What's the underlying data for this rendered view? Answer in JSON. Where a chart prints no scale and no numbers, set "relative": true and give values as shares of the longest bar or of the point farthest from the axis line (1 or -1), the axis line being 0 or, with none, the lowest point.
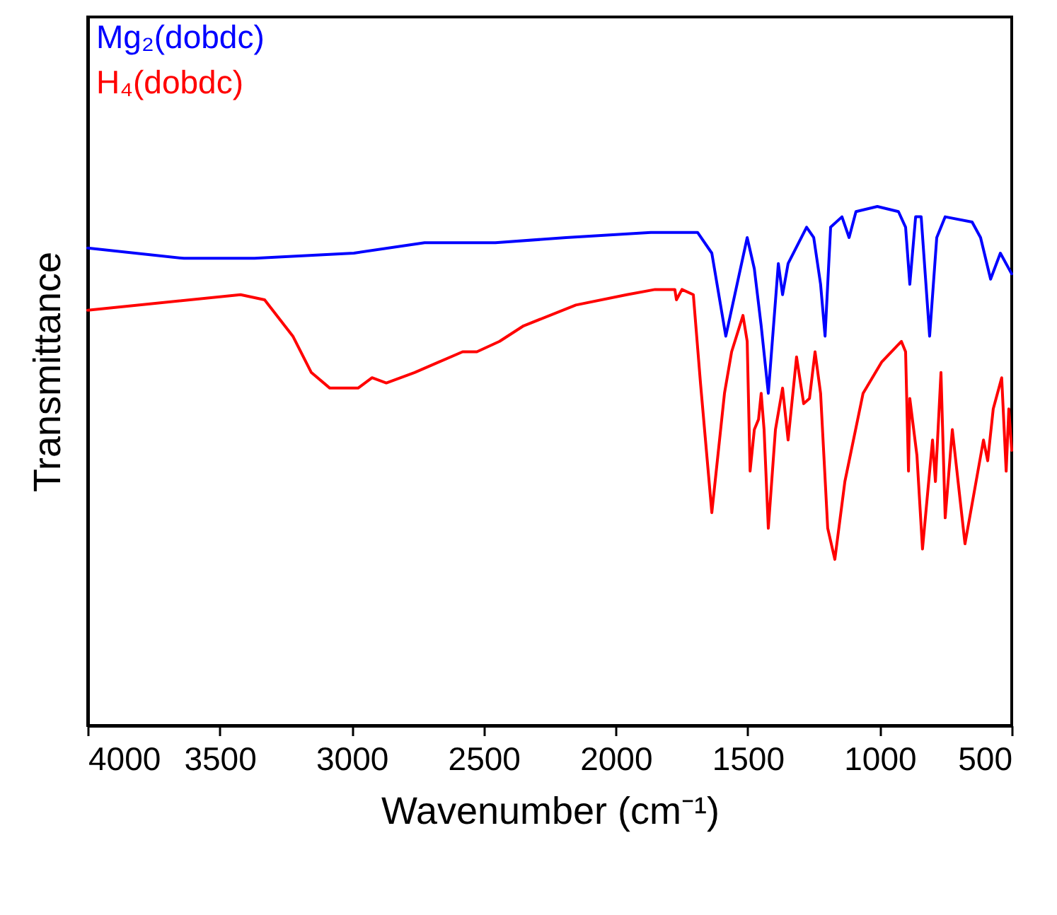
{
  "chart_data": {
    "type": "line",
    "relative": true,
    "xlabel": "Wavenumber (cm⁻¹)",
    "ylabel": "Transmittance",
    "xlim": [
      4000,
      500
    ],
    "xticks": [
      4000,
      3500,
      3000,
      2500,
      2000,
      1500,
      1000,
      500
    ],
    "legend": "top left",
    "grid": false,
    "marker": "none",
    "line_style": "solid",
    "series": [
      {
        "name": "Mg₂(dobdc)",
        "color": "#0000ff",
        "x": [
          4000,
          3636,
          3368,
          2992,
          2724,
          2456,
          2188,
          1867,
          1690,
          1636,
          1583,
          1502,
          1475,
          1449,
          1422,
          1384,
          1368,
          1347,
          1277,
          1250,
          1224,
          1207,
          1186,
          1143,
          1116,
          1090,
          1009,
          929,
          902,
          886,
          864,
          843,
          811,
          784,
          752,
          650,
          618,
          580,
          543,
          500
        ],
        "values": [
          0.92,
          0.9,
          0.9,
          0.91,
          0.93,
          0.93,
          0.94,
          0.95,
          0.95,
          0.91,
          0.75,
          0.94,
          0.88,
          0.77,
          0.64,
          0.89,
          0.83,
          0.89,
          0.96,
          0.94,
          0.85,
          0.75,
          0.96,
          0.98,
          0.94,
          0.99,
          1.0,
          0.99,
          0.96,
          0.85,
          0.98,
          0.98,
          0.75,
          0.94,
          0.98,
          0.97,
          0.94,
          0.86,
          0.91,
          0.87
        ]
      },
      {
        "name": "H₄(dobdc)",
        "color": "#ff0000",
        "x": [
          4000,
          3421,
          3330,
          3223,
          3153,
          3083,
          2976,
          2923,
          2869,
          2762,
          2671,
          2580,
          2526,
          2440,
          2349,
          2151,
          1958,
          1851,
          1776,
          1770,
          1749,
          1706,
          1679,
          1636,
          1588,
          1561,
          1518,
          1502,
          1491,
          1475,
          1459,
          1449,
          1438,
          1422,
          1395,
          1368,
          1347,
          1315,
          1288,
          1266,
          1245,
          1224,
          1197,
          1170,
          1132,
          1063,
          993,
          918,
          902,
          891,
          886,
          859,
          838,
          800,
          789,
          768,
          752,
          725,
          677,
          607,
          591,
          570,
          538,
          521,
          511,
          500
        ],
        "values": [
          0.8,
          0.83,
          0.82,
          0.75,
          0.68,
          0.65,
          0.65,
          0.67,
          0.66,
          0.68,
          0.7,
          0.72,
          0.72,
          0.74,
          0.77,
          0.81,
          0.83,
          0.84,
          0.84,
          0.82,
          0.84,
          0.83,
          0.66,
          0.41,
          0.64,
          0.72,
          0.79,
          0.74,
          0.49,
          0.57,
          0.59,
          0.64,
          0.57,
          0.38,
          0.57,
          0.65,
          0.55,
          0.71,
          0.62,
          0.63,
          0.72,
          0.64,
          0.38,
          0.32,
          0.47,
          0.64,
          0.7,
          0.74,
          0.72,
          0.49,
          0.63,
          0.52,
          0.34,
          0.55,
          0.47,
          0.68,
          0.4,
          0.57,
          0.35,
          0.55,
          0.51,
          0.61,
          0.67,
          0.49,
          0.61,
          0.53
        ]
      }
    ]
  }
}
